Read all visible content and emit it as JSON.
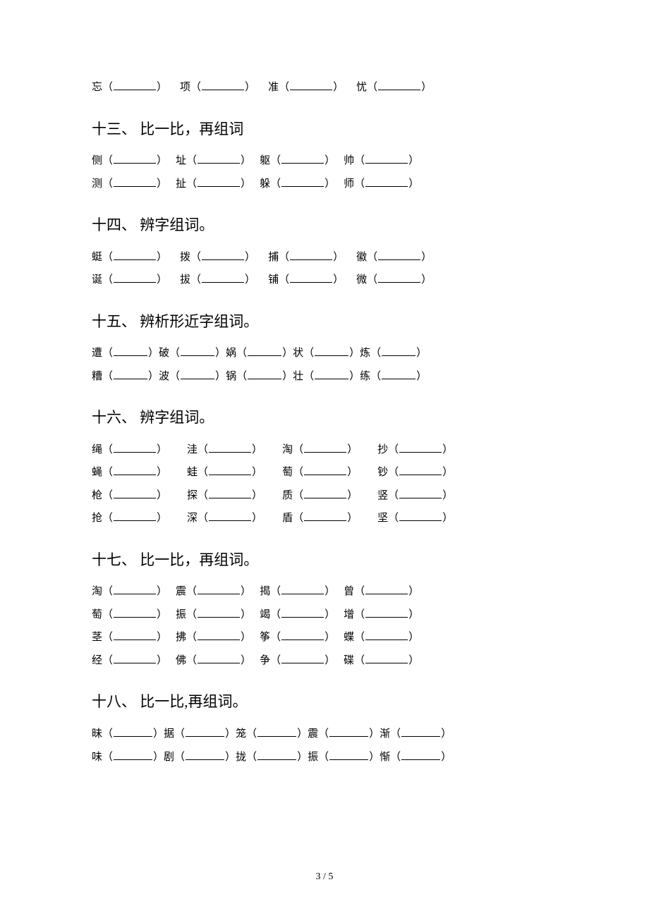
{
  "top_row": {
    "items": [
      {
        "char": "忘"
      },
      {
        "char": "项"
      },
      {
        "char": "准"
      },
      {
        "char": "忧"
      }
    ],
    "blank_width": "w60",
    "gap": "gap-m"
  },
  "sections": [
    {
      "heading": "十三、 比一比，再组词",
      "rows": [
        [
          "侧",
          "址",
          "躯",
          "帅"
        ],
        [
          "测",
          "扯",
          "躲",
          "师"
        ]
      ],
      "blank_width": "w60",
      "gap": "gap-s"
    },
    {
      "heading": "十四、 辨字组词。",
      "rows": [
        [
          "蜓",
          "拨",
          "捕",
          "徽"
        ],
        [
          "诞",
          "拔",
          "铺",
          "微"
        ]
      ],
      "blank_width": "w60",
      "gap": "gap-m"
    },
    {
      "heading": "十五、 辨析形近字组词。",
      "rows": [
        [
          "遭",
          "破",
          "娲",
          "状",
          "炼"
        ],
        [
          "糟",
          "波",
          "锅",
          "壮",
          "练"
        ]
      ],
      "blank_width": "w48",
      "gap": ""
    },
    {
      "heading": "十六、 辨字组词。",
      "rows": [
        [
          "绳",
          "洼",
          "淘",
          "抄"
        ],
        [
          "蝇",
          "蛙",
          "萄",
          "钞"
        ],
        [
          "枪",
          "探",
          "质",
          "竖"
        ],
        [
          "抢",
          "深",
          "盾",
          "坚"
        ]
      ],
      "blank_width": "w60",
      "gap": "gap-l"
    },
    {
      "heading": "十七、 比一比，再组词。",
      "rows": [
        [
          "淘",
          "震",
          "揭",
          "曾"
        ],
        [
          "萄",
          "振",
          "竭",
          "增"
        ],
        [
          "茎",
          "拂",
          "筝",
          "蝶"
        ],
        [
          "经",
          "佛",
          "争",
          "碟"
        ]
      ],
      "blank_width": "w60",
      "gap": "gap-s"
    },
    {
      "heading": "十八、 比一比,再组词。",
      "rows": [
        [
          "昧",
          "据",
          "笼",
          "震",
          "渐"
        ],
        [
          "味",
          "剧",
          "拢",
          "振",
          "惭"
        ]
      ],
      "blank_width": "w55",
      "gap": ""
    }
  ],
  "footer": "3 / 5",
  "colors": {
    "text": "#000000",
    "background": "#ffffff",
    "underline": "#000000"
  },
  "fonts": {
    "body_family": "SimSun",
    "row_size": 15,
    "heading_size": 21,
    "footer_size": 14
  }
}
